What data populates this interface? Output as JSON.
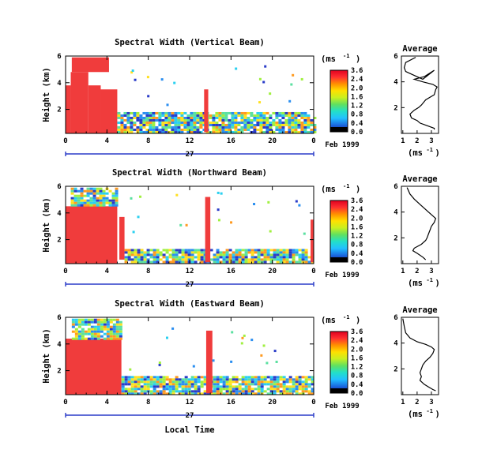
{
  "figure": {
    "xlabel": "Local Time",
    "date_label": "Feb 1999",
    "day_label": "27"
  },
  "colorbar": {
    "unit_label": "(ms",
    "unit_exp": "-1",
    "ticks": [
      "3.6",
      "2.4",
      "2.0",
      "1.6",
      "1.2",
      "0.8",
      "0.4",
      "0.0"
    ],
    "stops": [
      "#1a1aa0",
      "#1a6be0",
      "#22c0ff",
      "#22e0c8",
      "#60e060",
      "#c8f020",
      "#ffe000",
      "#ff9000",
      "#ff3030",
      "#e00020"
    ]
  },
  "chart_data": [
    {
      "type": "heatmap",
      "title": "Spectral Width (Vertical Beam)",
      "ylabel": "Height (km)",
      "x_ticks": [
        "0",
        "4",
        "8",
        "12",
        "16",
        "20",
        "0"
      ],
      "y_ticks": [
        "6",
        "4",
        "2"
      ],
      "xlim": [
        0,
        24
      ],
      "ylim": [
        0.2,
        6
      ],
      "regions": [
        {
          "x0": 0.0,
          "x1": 0.5,
          "y0": 0.2,
          "y1": 3.8,
          "level": "high"
        },
        {
          "x0": 0.5,
          "x1": 2.2,
          "y0": 0.2,
          "y1": 4.8,
          "level": "high"
        },
        {
          "x0": 2.2,
          "x1": 3.4,
          "y0": 0.2,
          "y1": 3.8,
          "level": "high"
        },
        {
          "x0": 3.4,
          "x1": 5.0,
          "y0": 0.2,
          "y1": 3.5,
          "level": "high"
        },
        {
          "x0": 0.6,
          "x1": 4.2,
          "y0": 4.8,
          "y1": 5.9,
          "level": "high"
        },
        {
          "x0": 5.0,
          "x1": 24.0,
          "y0": 0.3,
          "y1": 1.8,
          "level": "low"
        },
        {
          "x0": 13.4,
          "x1": 13.8,
          "y0": 0.3,
          "y1": 3.5,
          "level": "high"
        }
      ]
    },
    {
      "type": "heatmap",
      "title": "Spectral Width (Northward Beam)",
      "ylabel": "Height (km)",
      "x_ticks": [
        "0",
        "4",
        "8",
        "12",
        "16",
        "20",
        "0"
      ],
      "y_ticks": [
        "6",
        "4",
        "2"
      ],
      "xlim": [
        0,
        24
      ],
      "ylim": [
        0.2,
        6
      ],
      "regions": [
        {
          "x0": 0.0,
          "x1": 5.0,
          "y0": 0.2,
          "y1": 4.5,
          "level": "high"
        },
        {
          "x0": 0.5,
          "x1": 5.0,
          "y0": 4.5,
          "y1": 5.9,
          "level": "low"
        },
        {
          "x0": 5.2,
          "x1": 5.7,
          "y0": 0.5,
          "y1": 3.7,
          "level": "high"
        },
        {
          "x0": 5.7,
          "x1": 24.0,
          "y0": 0.3,
          "y1": 1.3,
          "level": "low"
        },
        {
          "x0": 13.5,
          "x1": 14.0,
          "y0": 0.3,
          "y1": 5.2,
          "level": "high"
        },
        {
          "x0": 23.7,
          "x1": 24.0,
          "y0": 0.3,
          "y1": 3.5,
          "level": "high"
        }
      ]
    },
    {
      "type": "heatmap",
      "title": "Spectral Width (Eastward Beam)",
      "ylabel": "Height (km)",
      "x_ticks": [
        "0",
        "4",
        "8",
        "12",
        "16",
        "20",
        "0"
      ],
      "y_ticks": [
        "6",
        "4",
        "2"
      ],
      "xlim": [
        0,
        24
      ],
      "ylim": [
        0.2,
        6
      ],
      "regions": [
        {
          "x0": 0.0,
          "x1": 5.4,
          "y0": 0.2,
          "y1": 4.4,
          "level": "high"
        },
        {
          "x0": 0.6,
          "x1": 5.4,
          "y0": 4.4,
          "y1": 5.9,
          "level": "low"
        },
        {
          "x0": 5.4,
          "x1": 24.0,
          "y0": 0.3,
          "y1": 1.6,
          "level": "low"
        },
        {
          "x0": 13.6,
          "x1": 14.2,
          "y0": 0.3,
          "y1": 5.0,
          "level": "high"
        }
      ]
    },
    {
      "type": "line",
      "title": "Average",
      "xlabel": "(ms",
      "xlabel_exp": "-1",
      "x_ticks": [
        "1",
        "2",
        "3"
      ],
      "y_ticks": [
        "6",
        "4",
        "2"
      ],
      "xlim": [
        0.9,
        3.5
      ],
      "ylim": [
        0,
        6
      ],
      "x": [
        1.9,
        1.2,
        1.1,
        1.2,
        1.6,
        2.4,
        3.2,
        2.5,
        1.8,
        2.4,
        3.1,
        3.4,
        3.3,
        3.2,
        2.6,
        2.3,
        2.1,
        1.8,
        1.5,
        1.6,
        2.0,
        2.2,
        2.7,
        3.2,
        3.2
      ],
      "y": [
        5.9,
        5.5,
        5.1,
        4.8,
        4.6,
        4.2,
        4.9,
        4.4,
        4.2,
        4.0,
        3.8,
        3.6,
        3.4,
        3.0,
        2.6,
        2.2,
        2.0,
        1.8,
        1.5,
        1.2,
        1.0,
        0.8,
        0.6,
        0.4,
        0.3
      ]
    },
    {
      "type": "line",
      "title": "Average",
      "xlabel": "(ms",
      "xlabel_exp": "-1",
      "x_ticks": [
        "1",
        "2",
        "3"
      ],
      "y_ticks": [
        "6",
        "4",
        "2"
      ],
      "xlim": [
        0.9,
        3.5
      ],
      "ylim": [
        0,
        6
      ],
      "x": [
        1.3,
        1.5,
        1.8,
        2.2,
        2.5,
        2.8,
        3.1,
        3.3,
        3.2,
        3.0,
        2.9,
        2.8,
        2.7,
        2.6,
        2.3,
        1.8,
        1.7,
        2.0,
        2.4,
        2.6
      ],
      "y": [
        5.9,
        5.4,
        5.0,
        4.6,
        4.3,
        4.0,
        3.7,
        3.5,
        3.2,
        2.9,
        2.6,
        2.3,
        2.0,
        1.8,
        1.5,
        1.2,
        1.0,
        0.8,
        0.5,
        0.3
      ]
    },
    {
      "type": "line",
      "title": "Average",
      "xlabel": "(ms",
      "xlabel_exp": "-1",
      "x_ticks": [
        "1",
        "2",
        "3"
      ],
      "y_ticks": [
        "6",
        "4",
        "2"
      ],
      "xlim": [
        0.9,
        3.5
      ],
      "ylim": [
        0,
        6
      ],
      "x": [
        1.0,
        1.1,
        1.2,
        1.5,
        2.0,
        2.6,
        3.0,
        3.2,
        3.1,
        2.9,
        2.6,
        2.4,
        2.3,
        2.2,
        2.3,
        2.2,
        2.5,
        2.8,
        3.1,
        3.3
      ],
      "y": [
        5.9,
        5.3,
        4.8,
        4.4,
        4.1,
        3.9,
        3.7,
        3.5,
        3.2,
        2.9,
        2.6,
        2.3,
        2.0,
        1.7,
        1.4,
        1.1,
        0.8,
        0.6,
        0.4,
        0.3
      ]
    }
  ]
}
